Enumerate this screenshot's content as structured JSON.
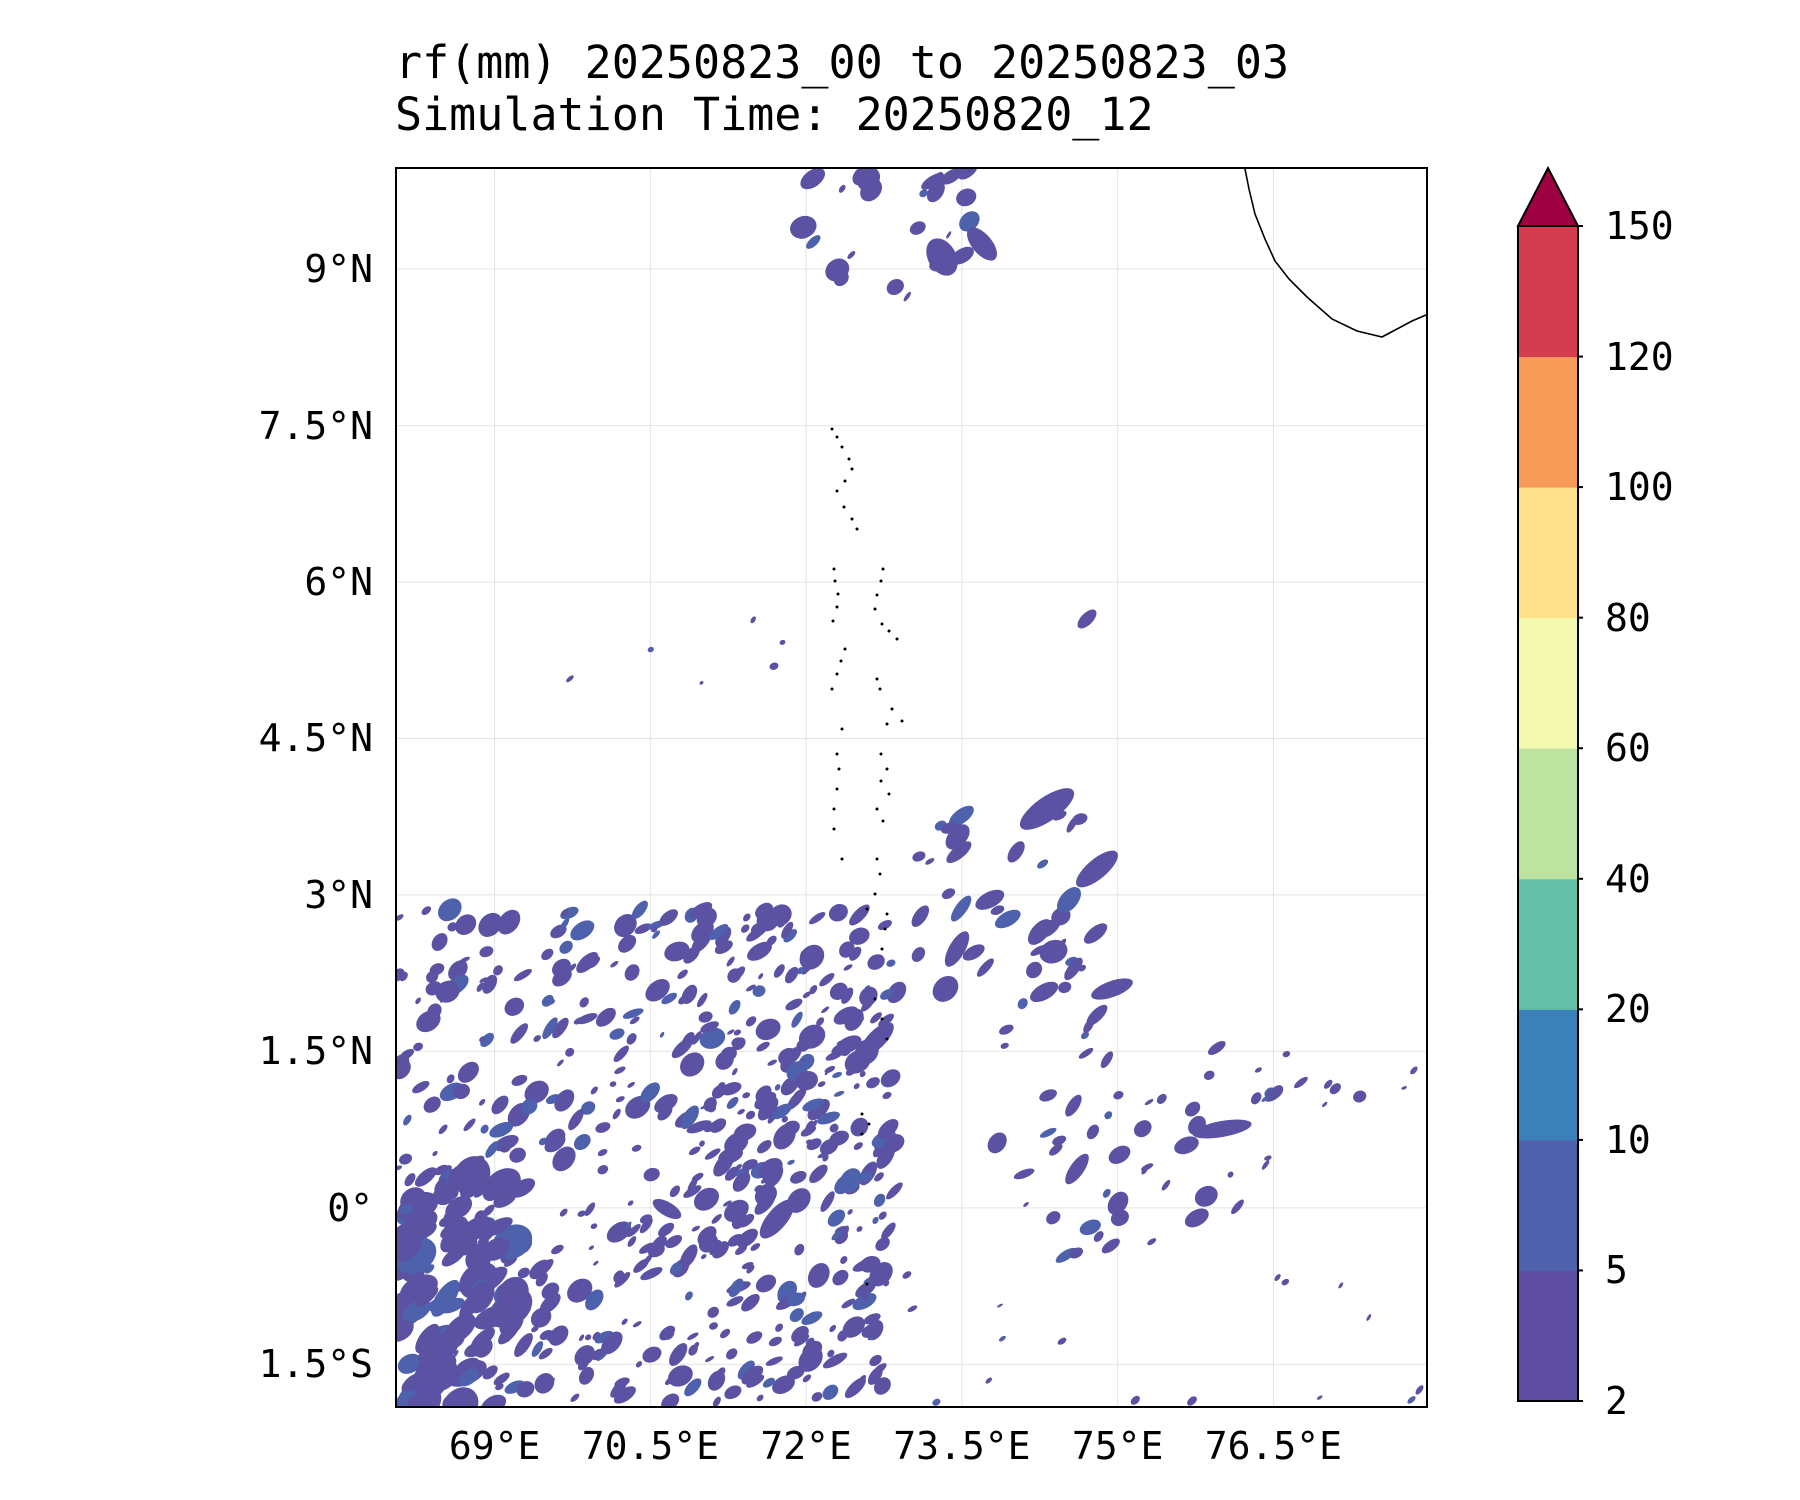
{
  "title": {
    "line1": "rf(mm) 20250823_00 to 20250823_03",
    "line2": "Simulation Time: 20250820_12"
  },
  "map": {
    "lat_ticks": [
      {
        "value": 9,
        "label": "9°N"
      },
      {
        "value": 7.5,
        "label": "7.5°N"
      },
      {
        "value": 6,
        "label": "6°N"
      },
      {
        "value": 4.5,
        "label": "4.5°N"
      },
      {
        "value": 3,
        "label": "3°N"
      },
      {
        "value": 1.5,
        "label": "1.5°N"
      },
      {
        "value": 0,
        "label": "0°"
      },
      {
        "value": -1.5,
        "label": "1.5°S"
      }
    ],
    "lon_ticks": [
      {
        "value": 69,
        "label": "69°E"
      },
      {
        "value": 70.5,
        "label": "70.5°E"
      },
      {
        "value": 72,
        "label": "72°E"
      },
      {
        "value": 73.5,
        "label": "73.5°E"
      },
      {
        "value": 75,
        "label": "75°E"
      },
      {
        "value": 76.5,
        "label": "76.5°E"
      }
    ],
    "lon_range": [
      68.06,
      77.97
    ],
    "lat_range": [
      -1.9,
      9.96
    ],
    "grid": true,
    "coastline_color": "#000000",
    "rain_color": "#5b52a3",
    "rain_color_dark": "#4d61ad"
  },
  "colorbar": {
    "levels": [
      2,
      5,
      10,
      20,
      40,
      60,
      80,
      100,
      120,
      150
    ],
    "labels": [
      "2",
      "5",
      "10",
      "20",
      "40",
      "60",
      "80",
      "100",
      "120",
      "150"
    ],
    "colors": [
      "#5e4fa2",
      "#4d61ad",
      "#3b80b9",
      "#64bfa9",
      "#bde3a1",
      "#f3f9af",
      "#fde08b",
      "#f89b59",
      "#d43d4f"
    ],
    "extend_color": "#9e0142",
    "extend": "max"
  }
}
